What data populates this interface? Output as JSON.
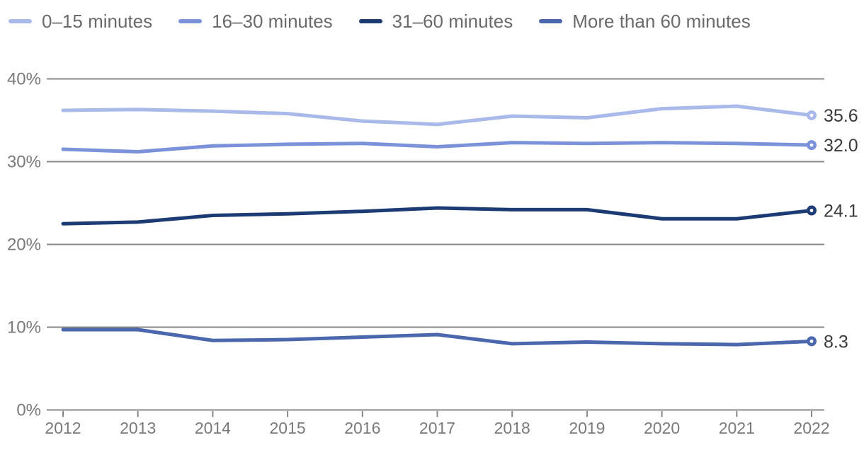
{
  "chart_data": {
    "type": "line",
    "title": "",
    "categories": [
      "2012",
      "2013",
      "2014",
      "2015",
      "2016",
      "2017",
      "2018",
      "2019",
      "2020",
      "2021",
      "2022"
    ],
    "yticks": [
      {
        "label": "40%",
        "value": 40
      },
      {
        "label": "30%",
        "value": 30
      },
      {
        "label": "20%",
        "value": 20
      },
      {
        "label": "10%",
        "value": 10
      },
      {
        "label": "0%",
        "value": 0
      }
    ],
    "ylim": [
      0,
      40
    ],
    "grid": "horizontal",
    "legend_position": "top",
    "series": [
      {
        "name": "0–15 minutes",
        "color": "#a9b9e9",
        "end_label": "35.6",
        "values": [
          36.2,
          36.3,
          36.1,
          35.8,
          34.9,
          34.5,
          35.5,
          35.3,
          36.4,
          36.7,
          35.6
        ]
      },
      {
        "name": "16–30 minutes",
        "color": "#7b91da",
        "end_label": "32.0",
        "values": [
          31.5,
          31.2,
          31.9,
          32.1,
          32.2,
          31.8,
          32.3,
          32.2,
          32.3,
          32.2,
          32.0
        ]
      },
      {
        "name": "31–60 minutes",
        "color": "#1c3a74",
        "end_label": "24.1",
        "values": [
          22.5,
          22.7,
          23.5,
          23.7,
          24.0,
          24.4,
          24.2,
          24.2,
          23.1,
          23.1,
          24.1
        ]
      },
      {
        "name": "More than 60 minutes",
        "color": "#4b67ad",
        "end_label": "8.3",
        "values": [
          9.7,
          9.7,
          8.4,
          8.5,
          8.8,
          9.1,
          8.0,
          8.2,
          8.0,
          7.9,
          8.3
        ]
      }
    ]
  },
  "colors": {
    "background": "#ffffff",
    "grid": "#888888",
    "axis_text": "#7a7a7a",
    "end_label_text": "#3a3a3a",
    "legend_text": "#6a6a6a"
  }
}
